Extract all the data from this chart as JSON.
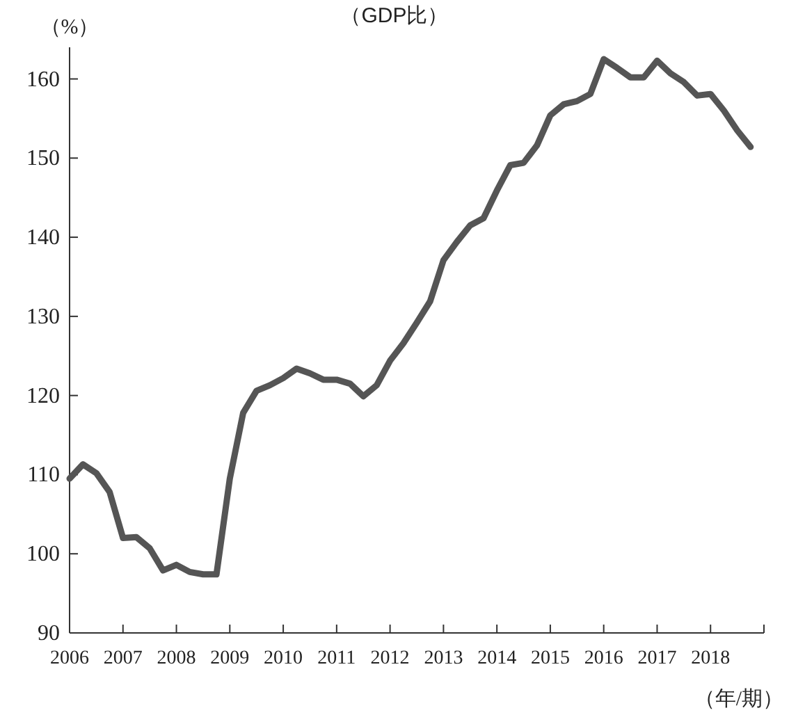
{
  "chart_data": {
    "type": "line",
    "title": "（GDP比）",
    "ylabel": "（%）",
    "xlabel": "（年/期）",
    "x": [
      2006,
      2006.25,
      2006.5,
      2006.75,
      2007,
      2007.25,
      2007.5,
      2007.75,
      2008,
      2008.25,
      2008.5,
      2008.75,
      2009,
      2009.25,
      2009.5,
      2009.75,
      2010,
      2010.25,
      2010.5,
      2010.75,
      2011,
      2011.25,
      2011.5,
      2011.75,
      2012,
      2012.25,
      2012.5,
      2012.75,
      2013,
      2013.25,
      2013.5,
      2013.75,
      2014,
      2014.25,
      2014.5,
      2014.75,
      2015,
      2015.25,
      2015.5,
      2015.75,
      2016,
      2016.25,
      2016.5,
      2016.75,
      2017,
      2017.25,
      2017.5,
      2017.75,
      2018,
      2018.25,
      2018.5,
      2018.75
    ],
    "series": [
      {
        "color": "#555555",
        "values": [
          109.5,
          111.3,
          110.2,
          107.8,
          102,
          102.1,
          100.7,
          97.9,
          98.6,
          97.7,
          97.4,
          97.4,
          109.5,
          117.8,
          120.6,
          121.3,
          122.2,
          123.4,
          122.8,
          122,
          122,
          121.5,
          119.9,
          121.3,
          124.4,
          126.6,
          129.2,
          131.9,
          137.1,
          139.4,
          141.5,
          142.4,
          145.9,
          149.1,
          149.4,
          151.6,
          155.4,
          156.8,
          157.2,
          158.1,
          162.5,
          161.4,
          160.2,
          160.2,
          162.3,
          160.7,
          159.6,
          157.9,
          158.1,
          156,
          153.5,
          151.4
        ]
      }
    ],
    "xlim": [
      2006,
      2019
    ],
    "xticks": [
      2006,
      2007,
      2008,
      2009,
      2010,
      2011,
      2012,
      2013,
      2014,
      2015,
      2016,
      2017,
      2018,
      {
        "value": 2019,
        "label": null
      }
    ],
    "ylim": [
      90,
      164
    ],
    "yticks": [
      90,
      100,
      110,
      120,
      130,
      140,
      150,
      160
    ],
    "grid": false,
    "marker": "none",
    "line_style": "solid"
  }
}
